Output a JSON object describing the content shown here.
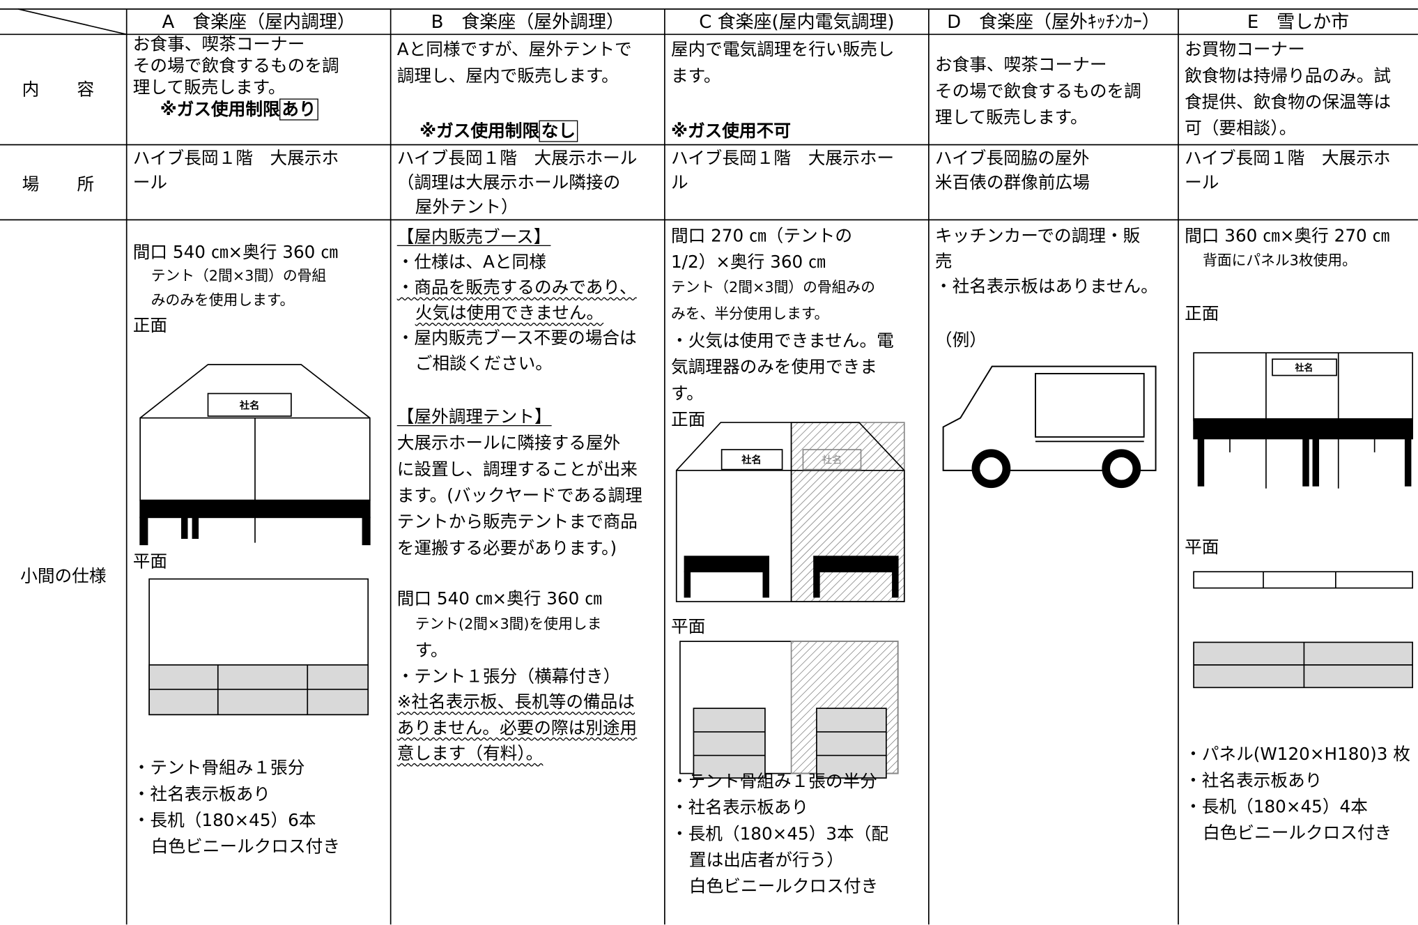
{
  "table": {
    "header": [
      "A　食楽座（屋内調理）",
      "B　食楽座（屋外調理）",
      "C 食楽座(屋内電気調理)",
      "D　食楽座（屋外ｷｯﾁﾝｶｰ）",
      "E　雪しか市"
    ],
    "rows": [
      {
        "label": "内　容",
        "cells": [
          {
            "lines": [
              "お食事、喫茶コーナー",
              "その場で飲食するものを調",
              "理して販売します。"
            ],
            "note": "※ガス使用制限",
            "note_mark": "あり"
          },
          {
            "lines": [
              "Aと同様ですが、屋外テントで",
              "調理し、屋内で販売します。"
            ],
            "note": "※ガス使用制限",
            "note_mark": "なし"
          },
          {
            "lines": [
              "屋内で電気調理を行い販売し",
              "ます。"
            ],
            "note": "※ガス使用不可"
          },
          {
            "lines": [
              "お食事、喫茶コーナー",
              "その場で飲食するものを調",
              "理して販売します。"
            ]
          },
          {
            "lines": [
              "お買物コーナー",
              "飲食物は持帰り品のみ。試",
              "食提供、飲食物の保温等は",
              "可（要相談）。"
            ]
          }
        ]
      },
      {
        "label": "場　所",
        "cells": [
          {
            "lines": [
              "ハイブ長岡１階　大展示ホ",
              "ール"
            ]
          },
          {
            "lines": [
              "ハイブ長岡１階　大展示ホール",
              "（調理は大展示ホール隣接の",
              "屋外テント）"
            ]
          },
          {
            "lines": [
              "ハイブ長岡１階　大展示ホー",
              "ル"
            ]
          },
          {
            "lines": [
              "ハイブ長岡脇の屋外",
              "米百俵の群像前広場"
            ]
          },
          {
            "lines": [
              "ハイブ長岡１階　大展示ホ",
              "ール"
            ]
          }
        ]
      },
      {
        "label": "小間の仕様",
        "cells": [
          {
            "blocks": [
              [
                "間口 540 ㎝×奥行 360 ㎝",
                "テント（2間×3間）の骨組",
                "みのみを使用します。"
              ],
              [
                "正面"
              ],
              [
                "平面"
              ],
              [
                "・テント骨組み１張分",
                "・社名表示板あり",
                "・長机（180×45）6本",
                "白色ビニールクロス付き"
              ]
            ],
            "signs": [
              "社名"
            ]
          },
          {
            "blocks": [
              [
                "【屋内販売ブース】",
                "・仕様は、Aと同様",
                "・商品を販売するのみであり、",
                "火気は使用できません。",
                "・屋内販売ブース不要の場合は",
                "ご相談ください。"
              ],
              [
                "【屋外調理テント】",
                "大展示ホールに隣接する屋外",
                "に設置し、調理することが出来",
                "ます。(バックヤードである調理",
                "テントから販売テントまで商品",
                "を運搬する必要があります。)"
              ],
              [
                "間口 540 ㎝×奥行 360 ㎝",
                "テント(2間×3間)を使用しま",
                "す。",
                "・テント１張分（横幕付き）",
                "※社名表示板、長机等の備品は",
                "ありません。必要の際は別途用",
                "意します（有料）。"
              ]
            ]
          },
          {
            "blocks": [
              [
                "間口 270 ㎝（テントの",
                "1/2）×奥行 360 ㎝",
                "テント（2間×3間）の骨組みの",
                "みを、半分使用します。",
                "・火気は使用できません。電",
                "気調理器のみを使用できま",
                "す。"
              ],
              [
                "正面"
              ],
              [
                "平面"
              ],
              [
                "・テント骨組み１張の半分",
                "・社名表示板あり",
                "・長机（180×45）3本（配",
                "置は出店者が行う）",
                "白色ビニールクロス付き"
              ]
            ],
            "signs": [
              "社名",
              "社名"
            ]
          },
          {
            "blocks": [
              [
                "キッチンカーでの調理・販",
                "売",
                "・社名表示板はありません。"
              ],
              [
                "（例）"
              ]
            ]
          },
          {
            "blocks": [
              [
                "間口 360 ㎝×奥行 270 ㎝",
                "背面にパネル3枚使用。"
              ],
              [
                "正面"
              ],
              [
                "平面"
              ],
              [
                "・パネル(W120×H180)3 枚",
                "・社名表示板あり",
                "・長机（180×45）4本",
                "白色ビニールクロス付き"
              ]
            ],
            "signs": [
              "社名"
            ]
          }
        ]
      }
    ]
  }
}
